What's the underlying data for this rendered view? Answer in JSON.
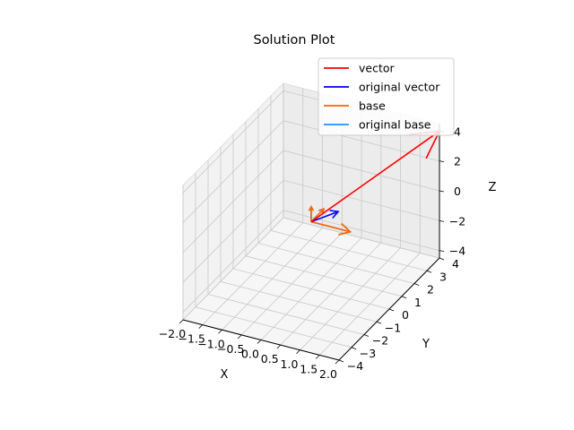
{
  "chart_data": {
    "type": "line",
    "projection": "3d",
    "title": "Solution Plot",
    "xlabel": "X",
    "ylabel": "Y",
    "zlabel": "Z",
    "xlim": [
      -2.0,
      2.0
    ],
    "ylim": [
      -4,
      4
    ],
    "zlim": [
      -4.5,
      4.5
    ],
    "x_ticks": [
      "−2.0",
      "−1.5",
      "−1.0",
      "−0.5",
      "0.0",
      "0.5",
      "1.0",
      "1.5",
      "2.0"
    ],
    "y_ticks": [
      "−4",
      "−3",
      "−2",
      "−1",
      "0",
      "1",
      "2",
      "3",
      "4"
    ],
    "z_ticks": [
      "−4",
      "−2",
      "0",
      "2",
      "4"
    ],
    "grid": true,
    "legend_position": "top-right",
    "series": [
      {
        "name": "vector",
        "color": "#ff0000",
        "style": "arrow",
        "vectors": [
          {
            "origin": [
              0,
              0,
              0
            ],
            "tip": [
              2.0,
              4.0,
              4.0
            ]
          }
        ]
      },
      {
        "name": "original vector",
        "color": "#0000ff",
        "style": "arrow",
        "vectors": [
          {
            "origin": [
              0,
              0,
              0
            ],
            "tip": [
              0.5,
              0.6,
              0.5
            ]
          }
        ]
      },
      {
        "name": "base",
        "color": "#ff6600",
        "style": "arrow",
        "vectors": [
          {
            "origin": [
              0,
              0,
              0
            ],
            "tip": [
              1.0,
              0.0,
              0.0
            ]
          },
          {
            "origin": [
              0,
              0,
              0
            ],
            "tip": [
              0.0,
              1.0,
              0.0
            ]
          },
          {
            "origin": [
              0,
              0,
              0
            ],
            "tip": [
              0.0,
              0.0,
              1.0
            ]
          }
        ]
      },
      {
        "name": "original base",
        "color": "#1e90ff",
        "style": "arrow",
        "vectors": [
          {
            "origin": [
              0,
              0,
              0
            ],
            "tip": [
              1.0,
              0.0,
              0.0
            ]
          },
          {
            "origin": [
              0,
              0,
              0
            ],
            "tip": [
              0.0,
              1.0,
              0.0
            ]
          },
          {
            "origin": [
              0,
              0,
              0
            ],
            "tip": [
              0.0,
              0.0,
              1.0
            ]
          }
        ]
      }
    ]
  }
}
